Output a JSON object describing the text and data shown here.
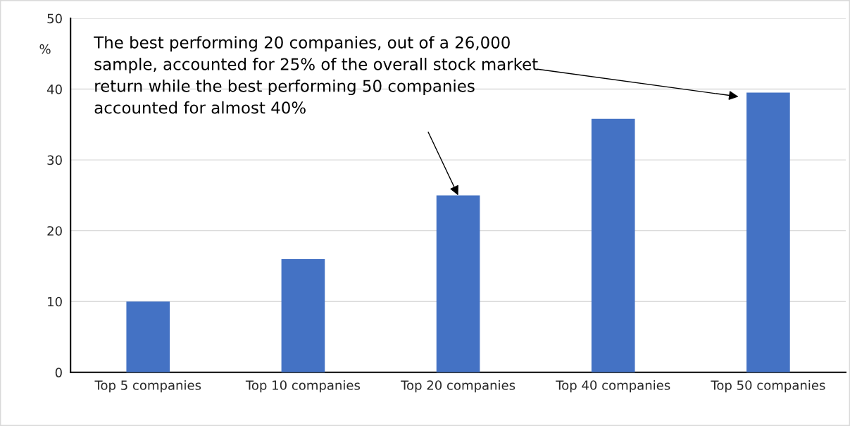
{
  "chart_data": {
    "type": "bar",
    "categories": [
      "Top 5 companies",
      "Top 10 companies",
      "Top 20 companies",
      "Top 40 companies",
      "Top 50 companies"
    ],
    "values": [
      10,
      16,
      25,
      35.8,
      39.5
    ],
    "color": "#4472c4",
    "ylabel": "%",
    "ylim": [
      0,
      50
    ],
    "yticks": [
      0,
      10,
      20,
      30,
      40,
      50
    ],
    "grid": "y",
    "annotations": [
      {
        "text": "The best performing 20 companies, out of a 26,000 sample, accounted for 25% of the overall stock market return while the best performing 50 companies accounted for almost 40%",
        "x": "Top 20 companies",
        "y": 25
      }
    ]
  }
}
